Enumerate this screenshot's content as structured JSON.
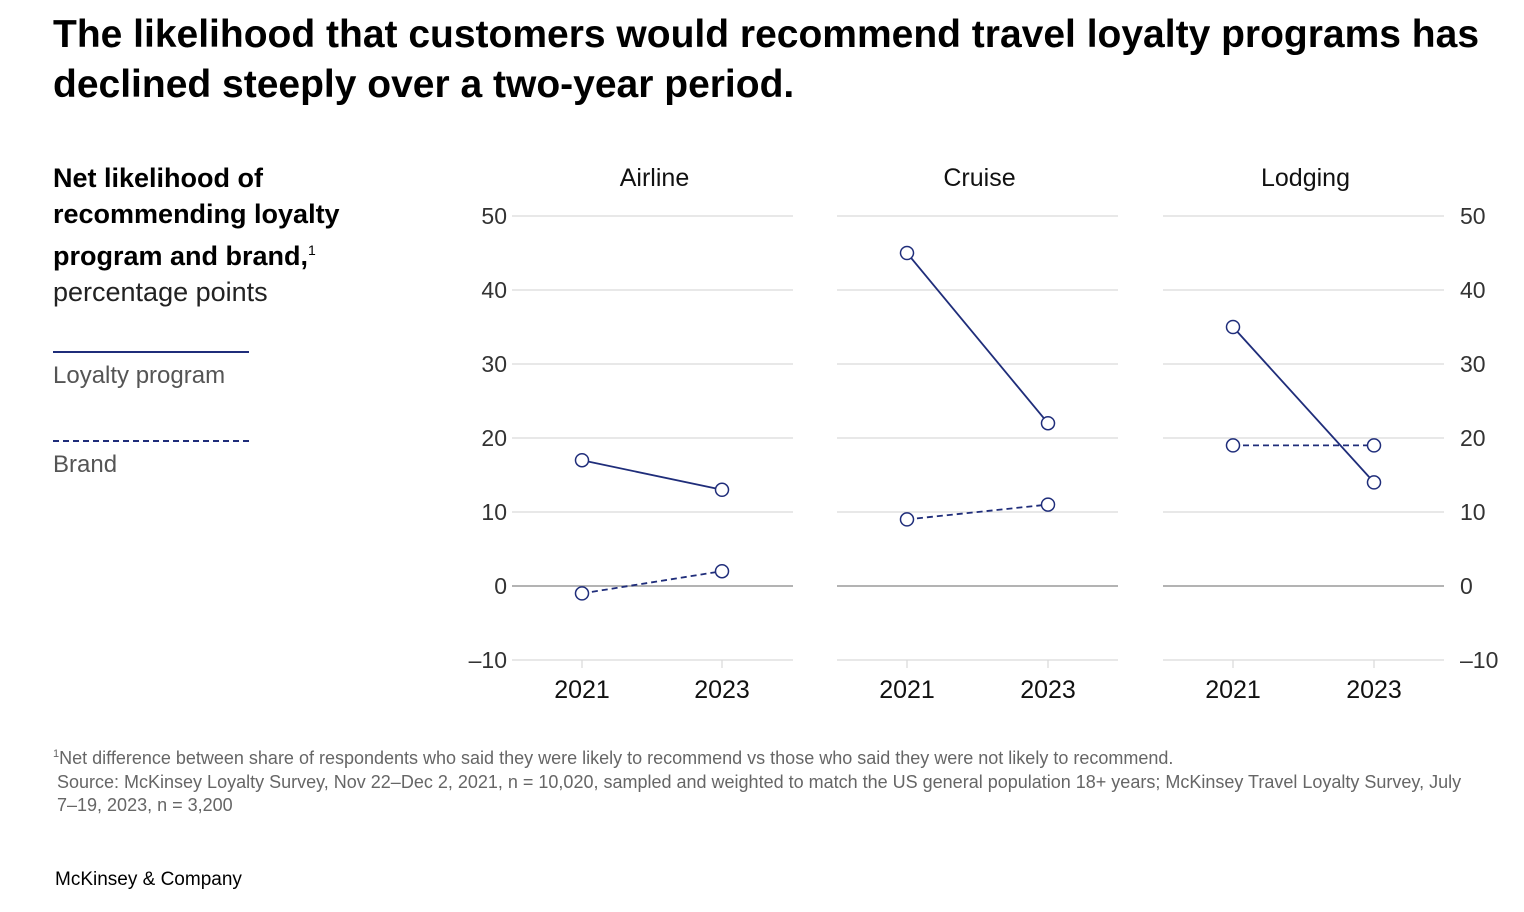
{
  "title": "The likelihood that customers would recommend travel loyalty programs has declined steeply over a two-year period.",
  "legend": {
    "ylabel_bold": "Net likelihood of recommending loyalty program and brand,",
    "ylabel_note_marker": "1",
    "ylabel_unit": "percentage points",
    "loyalty_label": "Loyalty program",
    "brand_label": "Brand"
  },
  "colors": {
    "series": "#1f2d7a",
    "grid": "#d9d9d9",
    "zero_line": "#9a9a9a",
    "tick_text": "#333333"
  },
  "chart_data": {
    "type": "line",
    "ylim": [
      -10,
      50
    ],
    "yticks": [
      50,
      40,
      30,
      20,
      10,
      0,
      -10
    ],
    "ytick_labels": [
      "50",
      "40",
      "30",
      "20",
      "10",
      "0",
      "–10"
    ],
    "x": [
      "2021",
      "2023"
    ],
    "grid": true,
    "panels": [
      {
        "title": "Airline",
        "series": [
          {
            "name": "Loyalty program",
            "style": "solid",
            "values": [
              17,
              13
            ]
          },
          {
            "name": "Brand",
            "style": "dashed",
            "values": [
              -1,
              2
            ]
          }
        ]
      },
      {
        "title": "Cruise",
        "series": [
          {
            "name": "Loyalty program",
            "style": "solid",
            "values": [
              45,
              22
            ]
          },
          {
            "name": "Brand",
            "style": "dashed",
            "values": [
              9,
              11
            ]
          }
        ]
      },
      {
        "title": "Lodging",
        "series": [
          {
            "name": "Loyalty program",
            "style": "solid",
            "values": [
              35,
              14
            ]
          },
          {
            "name": "Brand",
            "style": "dashed",
            "values": [
              19,
              19
            ]
          }
        ]
      }
    ]
  },
  "footnote": {
    "marker": "1",
    "text": "Net difference between share of respondents who said they were likely to recommend vs those who said they were not likely to recommend.",
    "source": "Source: McKinsey Loyalty Survey, Nov 22–Dec 2, 2021, n = 10,020, sampled and weighted to match the US general population 18+ years; McKinsey Travel Loyalty Survey, July 7–19, 2023, n = 3,200"
  },
  "brand": "McKinsey & Company"
}
